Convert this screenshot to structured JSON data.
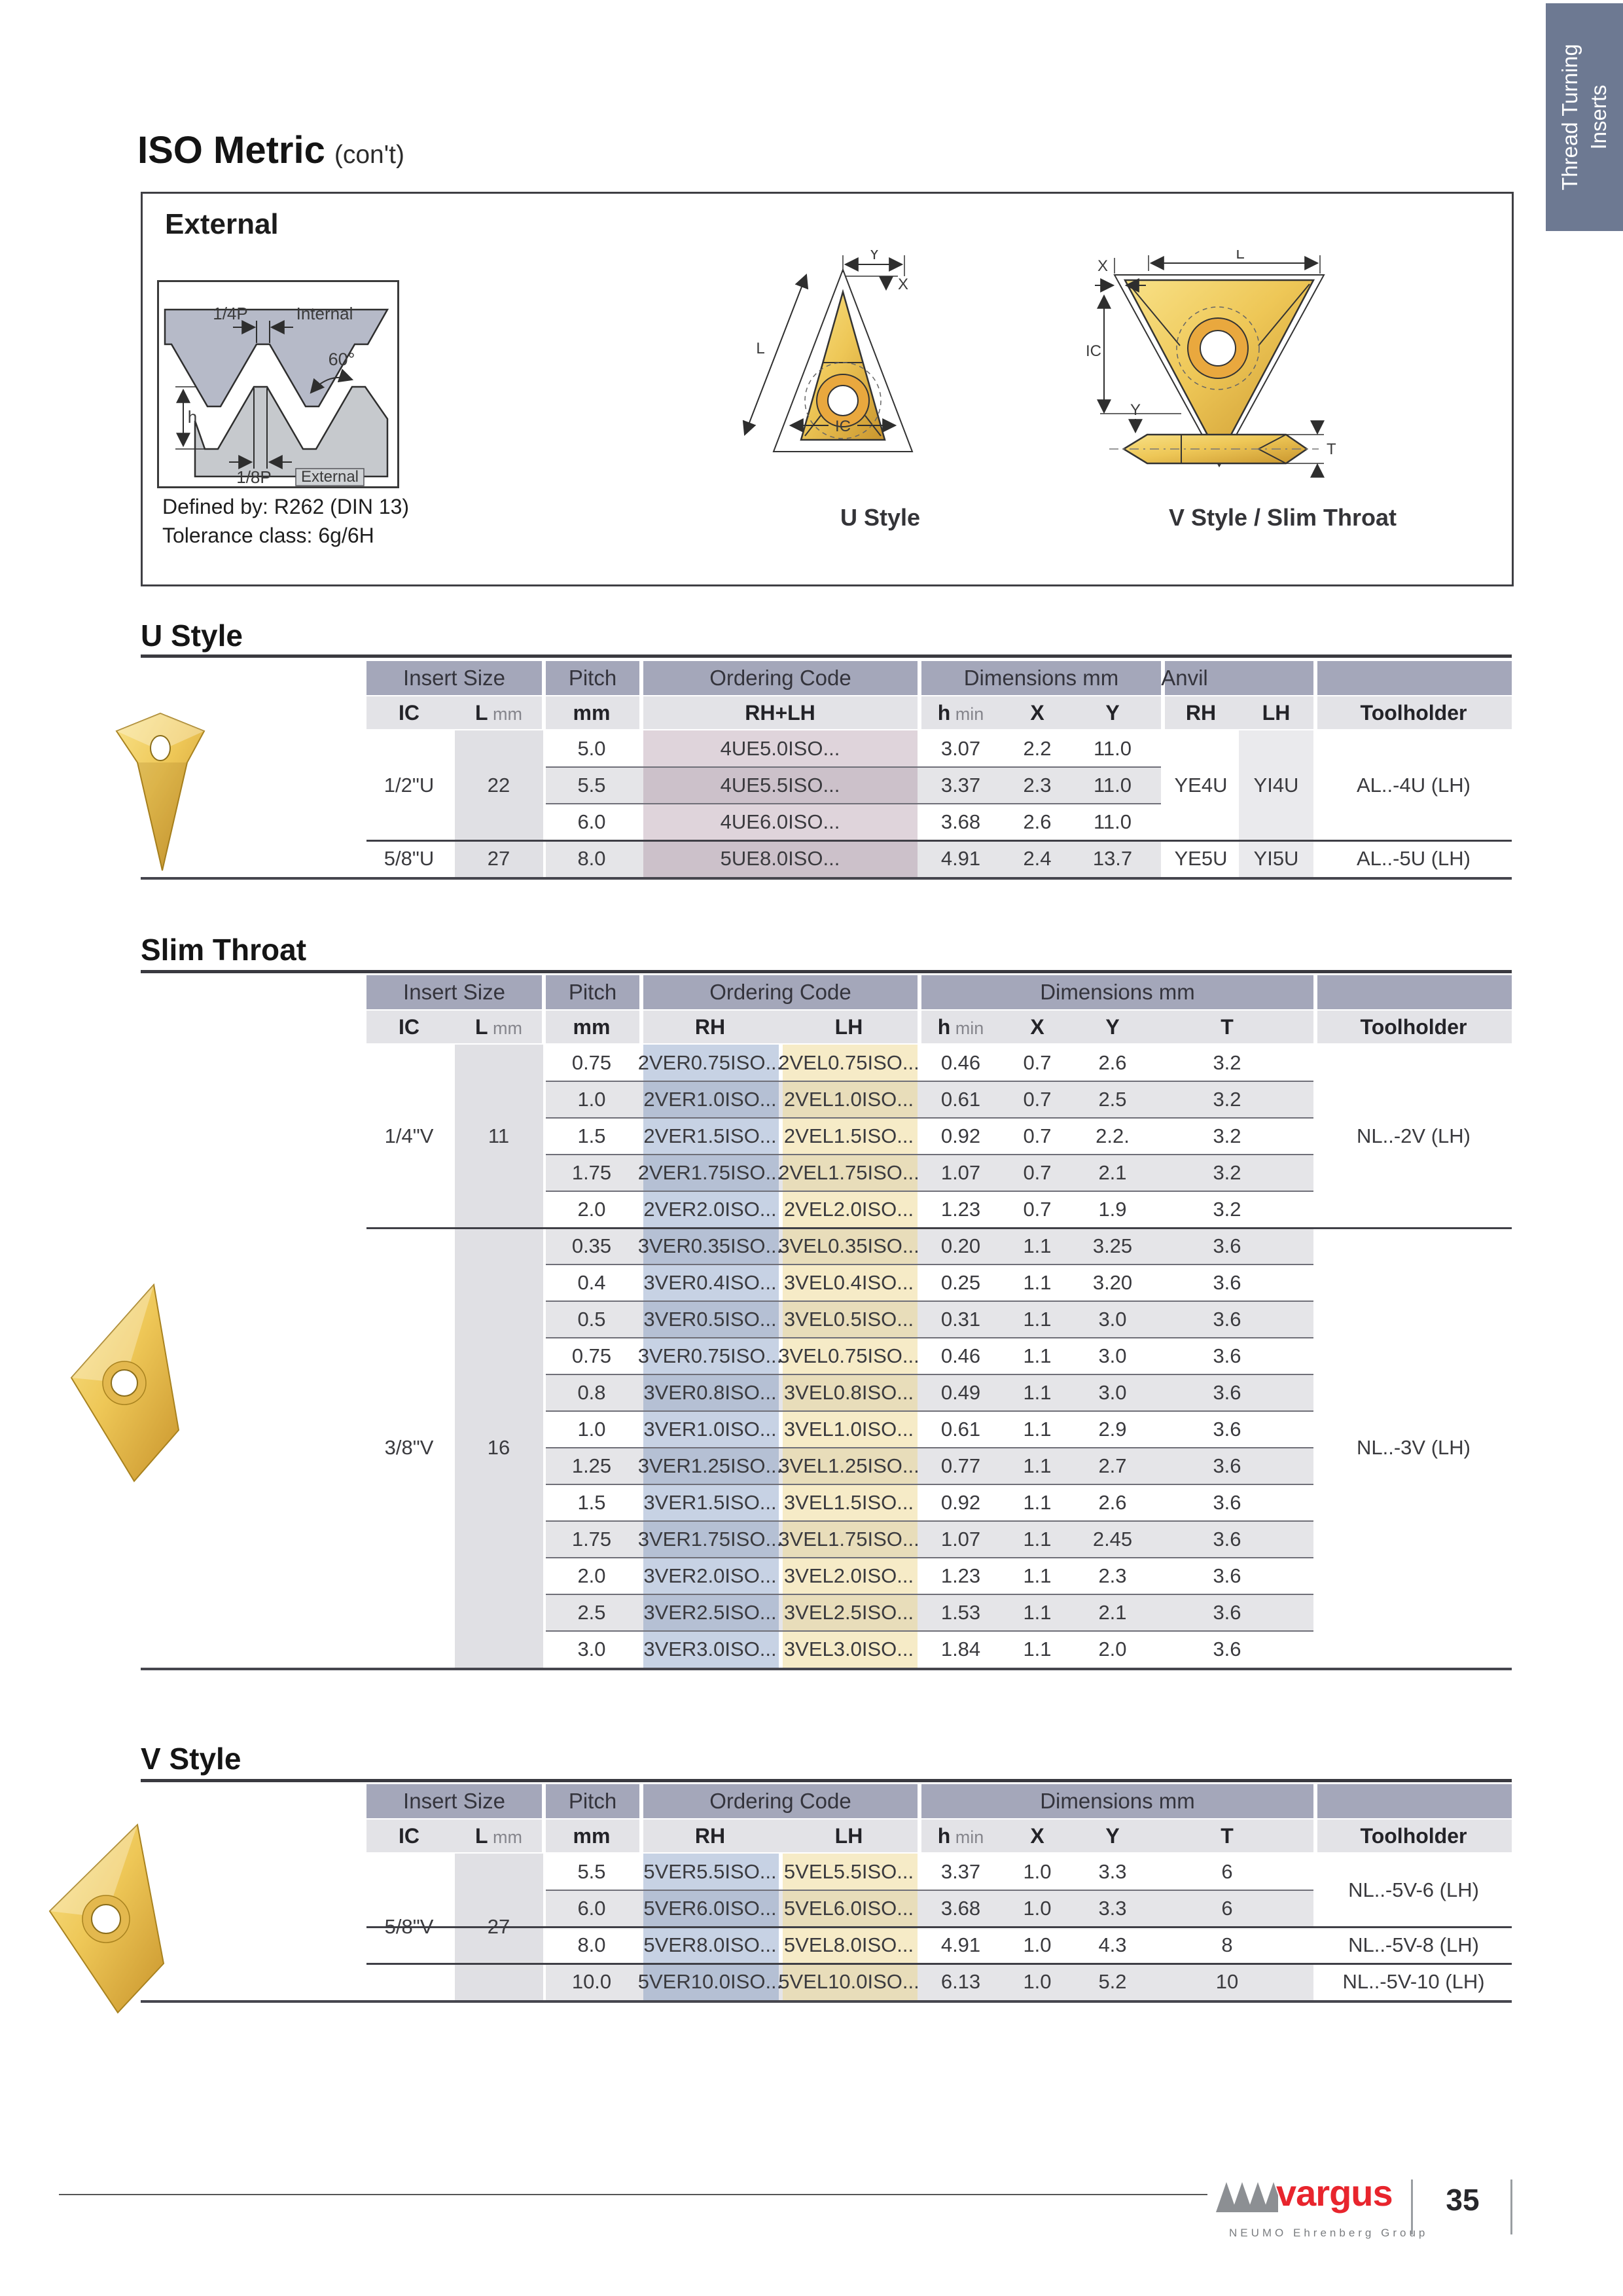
{
  "title": {
    "main": "ISO Metric",
    "suffix": "(con't)"
  },
  "side_tab": {
    "line1": "Thread Turning",
    "line2": "Inserts"
  },
  "external": {
    "title": "External",
    "defined_by": "Defined by: R262 (DIN 13)",
    "tolerance": "Tolerance class: 6g/6H",
    "thread_labels": {
      "quarter_p": "1/4P",
      "internal": "Internal",
      "angle": "60°",
      "h": "h",
      "eighth_p": "1/8P",
      "external": "External"
    },
    "dim_labels": {
      "y": "Y",
      "x": "X",
      "l": "L",
      "ic": "IC",
      "t": "T"
    },
    "captions": {
      "u": "U Style",
      "v": "V Style / Slim Throat"
    }
  },
  "tables": {
    "u_style": {
      "heading": "U Style",
      "group_headers": [
        "Insert Size",
        "Pitch",
        "Ordering Code",
        "Dimensions mm",
        "Anvil",
        ""
      ],
      "columns": {
        "ic": "IC",
        "l": {
          "main": "L",
          "unit": "mm"
        },
        "pitch": "mm",
        "code": "RH+LH",
        "h": {
          "main": "h",
          "unit": "min"
        },
        "x": "X",
        "y": "Y",
        "anvil_rh": "RH",
        "anvil_lh": "LH",
        "toolholder": "Toolholder"
      },
      "groups": [
        {
          "ic": "1/2\"U",
          "l": "22",
          "anvil_rh": "YE4U",
          "anvil_lh": "YI4U",
          "toolholder": "AL..-4U (LH)",
          "rows": [
            {
              "pitch": "5.0",
              "code": "4UE5.0ISO...",
              "h_min": "3.07",
              "x": "2.2",
              "y": "11.0"
            },
            {
              "pitch": "5.5",
              "code": "4UE5.5ISO...",
              "h_min": "3.37",
              "x": "2.3",
              "y": "11.0"
            },
            {
              "pitch": "6.0",
              "code": "4UE6.0ISO...",
              "h_min": "3.68",
              "x": "2.6",
              "y": "11.0"
            }
          ]
        },
        {
          "ic": "5/8\"U",
          "l": "27",
          "anvil_rh": "YE5U",
          "anvil_lh": "YI5U",
          "toolholder": "AL..-5U (LH)",
          "rows": [
            {
              "pitch": "8.0",
              "code": "5UE8.0ISO...",
              "h_min": "4.91",
              "x": "2.4",
              "y": "13.7"
            }
          ]
        }
      ]
    },
    "slim_throat": {
      "heading": "Slim Throat",
      "group_headers": [
        "Insert Size",
        "Pitch",
        "Ordering Code",
        "Dimensions mm",
        ""
      ],
      "columns": {
        "ic": "IC",
        "l": {
          "main": "L",
          "unit": "mm"
        },
        "pitch": "mm",
        "rh": "RH",
        "lh": "LH",
        "h": {
          "main": "h",
          "unit": "min"
        },
        "x": "X",
        "y": "Y",
        "t": "T",
        "toolholder": "Toolholder"
      },
      "groups": [
        {
          "ic": "1/4\"V",
          "l": "11",
          "toolholder": "NL..-2V (LH)",
          "rows": [
            {
              "pitch": "0.75",
              "rh": "2VER0.75ISO...",
              "lh": "2VEL0.75ISO...",
              "h_min": "0.46",
              "x": "0.7",
              "y": "2.6",
              "t": "3.2"
            },
            {
              "pitch": "1.0",
              "rh": "2VER1.0ISO...",
              "lh": "2VEL1.0ISO...",
              "h_min": "0.61",
              "x": "0.7",
              "y": "2.5",
              "t": "3.2"
            },
            {
              "pitch": "1.5",
              "rh": "2VER1.5ISO...",
              "lh": "2VEL1.5ISO...",
              "h_min": "0.92",
              "x": "0.7",
              "y": "2.2.",
              "t": "3.2"
            },
            {
              "pitch": "1.75",
              "rh": "2VER1.75ISO...",
              "lh": "2VEL1.75ISO...",
              "h_min": "1.07",
              "x": "0.7",
              "y": "2.1",
              "t": "3.2"
            },
            {
              "pitch": "2.0",
              "rh": "2VER2.0ISO...",
              "lh": "2VEL2.0ISO...",
              "h_min": "1.23",
              "x": "0.7",
              "y": "1.9",
              "t": "3.2"
            }
          ]
        },
        {
          "ic": "3/8\"V",
          "l": "16",
          "toolholder": "NL..-3V (LH)",
          "rows": [
            {
              "pitch": "0.35",
              "rh": "3VER0.35ISO...",
              "lh": "3VEL0.35ISO...",
              "h_min": "0.20",
              "x": "1.1",
              "y": "3.25",
              "t": "3.6"
            },
            {
              "pitch": "0.4",
              "rh": "3VER0.4ISO...",
              "lh": "3VEL0.4ISO...",
              "h_min": "0.25",
              "x": "1.1",
              "y": "3.20",
              "t": "3.6"
            },
            {
              "pitch": "0.5",
              "rh": "3VER0.5ISO...",
              "lh": "3VEL0.5ISO...",
              "h_min": "0.31",
              "x": "1.1",
              "y": "3.0",
              "t": "3.6"
            },
            {
              "pitch": "0.75",
              "rh": "3VER0.75ISO...",
              "lh": "3VEL0.75ISO...",
              "h_min": "0.46",
              "x": "1.1",
              "y": "3.0",
              "t": "3.6"
            },
            {
              "pitch": "0.8",
              "rh": "3VER0.8ISO...",
              "lh": "3VEL0.8ISO...",
              "h_min": "0.49",
              "x": "1.1",
              "y": "3.0",
              "t": "3.6"
            },
            {
              "pitch": "1.0",
              "rh": "3VER1.0ISO...",
              "lh": "3VEL1.0ISO...",
              "h_min": "0.61",
              "x": "1.1",
              "y": "2.9",
              "t": "3.6"
            },
            {
              "pitch": "1.25",
              "rh": "3VER1.25ISO...",
              "lh": "3VEL1.25ISO...",
              "h_min": "0.77",
              "x": "1.1",
              "y": "2.7",
              "t": "3.6"
            },
            {
              "pitch": "1.5",
              "rh": "3VER1.5ISO...",
              "lh": "3VEL1.5ISO...",
              "h_min": "0.92",
              "x": "1.1",
              "y": "2.6",
              "t": "3.6"
            },
            {
              "pitch": "1.75",
              "rh": "3VER1.75ISO...",
              "lh": "3VEL1.75ISO...",
              "h_min": "1.07",
              "x": "1.1",
              "y": "2.45",
              "t": "3.6"
            },
            {
              "pitch": "2.0",
              "rh": "3VER2.0ISO...",
              "lh": "3VEL2.0ISO...",
              "h_min": "1.23",
              "x": "1.1",
              "y": "2.3",
              "t": "3.6"
            },
            {
              "pitch": "2.5",
              "rh": "3VER2.5ISO...",
              "lh": "3VEL2.5ISO...",
              "h_min": "1.53",
              "x": "1.1",
              "y": "2.1",
              "t": "3.6"
            },
            {
              "pitch": "3.0",
              "rh": "3VER3.0ISO...",
              "lh": "3VEL3.0ISO...",
              "h_min": "1.84",
              "x": "1.1",
              "y": "2.0",
              "t": "3.6"
            }
          ]
        }
      ]
    },
    "v_style": {
      "heading": "V Style",
      "group_headers": [
        "Insert Size",
        "Pitch",
        "Ordering Code",
        "Dimensions mm",
        ""
      ],
      "columns": {
        "ic": "IC",
        "l": {
          "main": "L",
          "unit": "mm"
        },
        "pitch": "mm",
        "rh": "RH",
        "lh": "LH",
        "h": {
          "main": "h",
          "unit": "min"
        },
        "x": "X",
        "y": "Y",
        "t": "T",
        "toolholder": "Toolholder"
      },
      "groups": [
        {
          "ic": "5/8\"V",
          "l": "27",
          "rows": [
            {
              "pitch": "5.5",
              "rh": "5VER5.5ISO...",
              "lh": "5VEL5.5ISO...",
              "h_min": "3.37",
              "x": "1.0",
              "y": "3.3",
              "t": "6"
            },
            {
              "pitch": "6.0",
              "rh": "5VER6.0ISO...",
              "lh": "5VEL6.0ISO...",
              "h_min": "3.68",
              "x": "1.0",
              "y": "3.3",
              "t": "6"
            },
            {
              "pitch": "8.0",
              "rh": "5VER8.0ISO...",
              "lh": "5VEL8.0ISO...",
              "h_min": "4.91",
              "x": "1.0",
              "y": "4.3",
              "t": "8"
            },
            {
              "pitch": "10.0",
              "rh": "5VER10.0ISO...",
              "lh": "5VEL10.0ISO...",
              "h_min": "6.13",
              "x": "1.0",
              "y": "5.2",
              "t": "10"
            }
          ]
        }
      ],
      "toolholders": [
        {
          "label": "NL..-5V-6 (LH)",
          "rows": [
            0,
            1
          ]
        },
        {
          "label": "NL..-5V-8 (LH)",
          "rows": [
            2
          ]
        },
        {
          "label": "NL..-5V-10 (LH)",
          "rows": [
            3
          ]
        }
      ]
    }
  },
  "footer": {
    "brand": "vargus",
    "brand_sub": "NEUMO Ehrenberg Group",
    "page_number": "35"
  }
}
